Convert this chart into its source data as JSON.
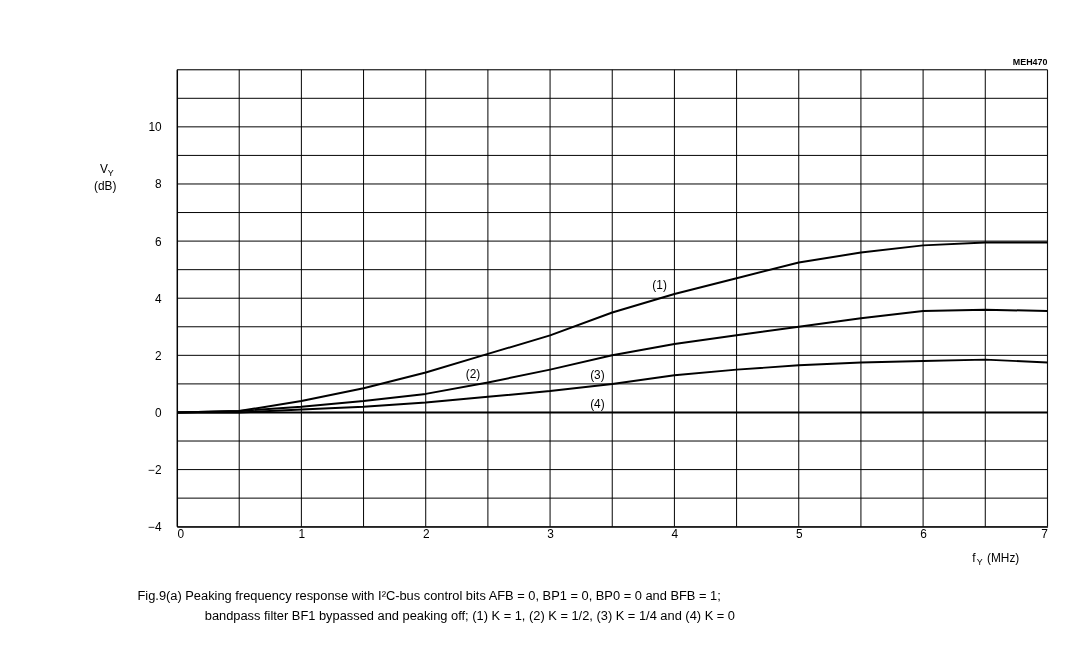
{
  "chart_data": {
    "type": "line",
    "xlabel": "f$_{Y}$ (MHz)",
    "ylabel": "V$_{Y}$ (dB)",
    "annotations": [
      "MEH470",
      "Fig.9(a)  Peaking frequency response with I²C-bus control bits AFB = 0, BP1 = 0, BP0 = 0 and BFB = 1;",
      "bandpass filter BF1 bypassed and peaking off; (1) K = 1, (2) K = 1/2, (3) K = 1/4 and (4) K = 0"
    ],
    "x": [
      0,
      0.5,
      1,
      1.5,
      2,
      2.5,
      3,
      3.5,
      4,
      4.5,
      5,
      5.5,
      6,
      6.5,
      7
    ],
    "series": [
      {
        "name": "(1)",
        "color": "#000000",
        "values": [
          0,
          0.05,
          0.4,
          0.85,
          1.4,
          2.05,
          2.7,
          3.5,
          4.15,
          4.7,
          5.25,
          5.6,
          5.85,
          5.95,
          5.95
        ]
      },
      {
        "name": "(2)",
        "color": "#000000",
        "values": [
          0,
          0.05,
          0.2,
          0.4,
          0.65,
          1.05,
          1.5,
          2.0,
          2.4,
          2.7,
          3.0,
          3.3,
          3.55,
          3.6,
          3.55
        ]
      },
      {
        "name": "(3)",
        "color": "#000000",
        "values": [
          0,
          0,
          0.1,
          0.2,
          0.35,
          0.55,
          0.75,
          1.0,
          1.3,
          1.5,
          1.65,
          1.75,
          1.8,
          1.85,
          1.75
        ]
      },
      {
        "name": "(4)",
        "color": "#000000",
        "values": [
          0,
          0,
          0,
          0,
          0,
          0,
          0,
          0,
          0,
          0,
          0,
          0,
          0,
          0,
          0
        ]
      }
    ],
    "xlim": [
      0,
      7
    ],
    "xticks": [
      0,
      {
        "value": 0.5,
        "label": null
      },
      1,
      {
        "value": 1.5,
        "label": null
      },
      2,
      {
        "value": 2.5,
        "label": null
      },
      3,
      {
        "value": 3.5,
        "label": null
      },
      4,
      {
        "value": 4.5,
        "label": null
      },
      5,
      {
        "value": 5.5,
        "label": null
      },
      6,
      {
        "value": 6.5,
        "label": null
      },
      7
    ],
    "ylim": [
      -4,
      12
    ],
    "yticks": [
      -4,
      {
        "value": -3,
        "label": null
      },
      -2,
      {
        "value": -1,
        "label": null
      },
      0,
      {
        "value": 1,
        "label": null
      },
      2,
      {
        "value": 3,
        "label": null
      },
      4,
      {
        "value": 5,
        "label": null
      },
      6,
      {
        "value": 7,
        "label": null
      },
      8,
      {
        "value": 9,
        "label": null
      },
      10,
      {
        "value": 11,
        "label": null
      },
      {
        "value": 12,
        "label": null
      }
    ],
    "grid": true,
    "legend": false,
    "marker": "none",
    "line_style": "solid"
  }
}
